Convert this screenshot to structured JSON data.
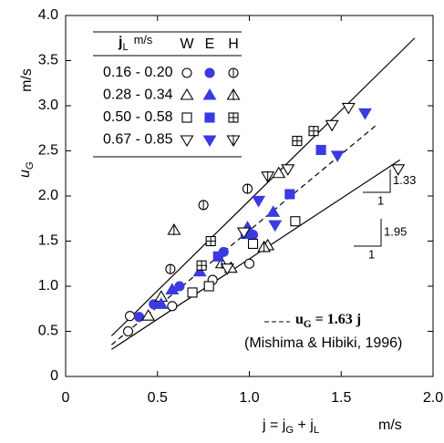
{
  "chart_data": {
    "type": "scatter",
    "xlabel": [
      "j = j",
      "G",
      " + j",
      "L"
    ],
    "xunit": "m/s",
    "ylabel": [
      "u",
      "G"
    ],
    "yunit": "m/s",
    "xlim": [
      0,
      2.0
    ],
    "ylim": [
      0,
      4.0
    ],
    "xticks": [
      0,
      0.5,
      {
        "value": 1.0,
        "label": "1.0"
      },
      1.5,
      {
        "value": 2.0,
        "label": "2.0"
      }
    ],
    "yticks": [
      0,
      0.5,
      {
        "value": 1.0,
        "label": "1.0"
      },
      1.5,
      {
        "value": 2.0,
        "label": "2.0"
      },
      2.5,
      {
        "value": 3.0,
        "label": "3.0"
      },
      3.5,
      {
        "value": 4.0,
        "label": "4.0"
      }
    ],
    "legend": {
      "header": [
        "j",
        "L",
        "m/s"
      ],
      "columns": [
        "W",
        "E",
        "H"
      ]
    },
    "fill_color": "#3a3ae0",
    "series": [
      {
        "name": "0.16 - 0.20",
        "marker": "circle",
        "points": [
          {
            "x": [
              0.34,
              0.35,
              0.58,
              0.8,
              1.0
            ],
            "y": [
              0.5,
              0.67,
              0.78,
              1.07,
              1.25
            ]
          },
          {
            "x": [
              0.4,
              0.48,
              0.62,
              0.86,
              1.02
            ],
            "y": [
              0.66,
              0.8,
              1.0,
              1.38,
              1.57
            ]
          },
          {
            "x": [
              0.57,
              0.75,
              0.99
            ],
            "y": [
              1.19,
              1.9,
              2.08
            ]
          }
        ]
      },
      {
        "name": "0.28 - 0.34",
        "marker": "triangle",
        "points": [
          {
            "x": [
              0.45,
              0.52,
              0.9,
              1.1,
              1.16
            ],
            "y": [
              0.67,
              0.88,
              1.2,
              1.45,
              2.25
            ]
          },
          {
            "x": [
              0.52,
              0.58,
              0.73,
              0.99,
              1.13
            ],
            "y": [
              0.8,
              0.96,
              1.16,
              1.65,
              1.82
            ]
          },
          {
            "x": [
              0.59,
              0.85,
              1.08
            ],
            "y": [
              1.62,
              1.25,
              1.43
            ]
          }
        ]
      },
      {
        "name": "0.50 - 0.58",
        "marker": "square",
        "points": [
          {
            "x": [
              0.69,
              0.78,
              1.02,
              1.25
            ],
            "y": [
              0.93,
              1.0,
              1.47,
              1.72
            ]
          },
          {
            "x": [
              0.83,
              0.98,
              1.22,
              1.39
            ],
            "y": [
              1.33,
              1.58,
              2.02,
              2.51
            ]
          },
          {
            "x": [
              0.79,
              0.74,
              1.26,
              1.35
            ],
            "y": [
              1.5,
              1.23,
              2.61,
              2.72
            ]
          }
        ]
      },
      {
        "name": "0.67 - 0.85",
        "marker": "triangle-down",
        "points": [
          {
            "x": [
              0.88,
              0.97,
              1.21,
              1.45,
              1.54,
              1.81
            ],
            "y": [
              1.2,
              1.6,
              2.3,
              2.79,
              2.98,
              2.3
            ]
          },
          {
            "x": [
              1.05,
              1.14,
              1.48,
              1.63
            ],
            "y": [
              1.95,
              1.68,
              2.45,
              2.92
            ]
          },
          {
            "x": [
              1.1
            ],
            "y": [
              2.22
            ]
          }
        ]
      }
    ],
    "fits": [
      {
        "x": [
          0.25,
          1.9
        ],
        "y": [
          0.45,
          3.75
        ],
        "dashed": false
      },
      {
        "x": [
          0.25,
          1.7
        ],
        "y": [
          0.35,
          2.8
        ],
        "dashed": true
      },
      {
        "x": [
          0.25,
          1.82
        ],
        "y": [
          0.3,
          2.4
        ],
        "dashed": false
      }
    ],
    "slope_labels": [
      {
        "rise": "1.95",
        "run": "1"
      },
      {
        "rise": "1.33",
        "run": "1"
      }
    ],
    "annotation": {
      "formula": [
        "u",
        "G",
        " = 1.63 j"
      ],
      "source": "(Mishima & Hibiki, 1996)"
    }
  }
}
